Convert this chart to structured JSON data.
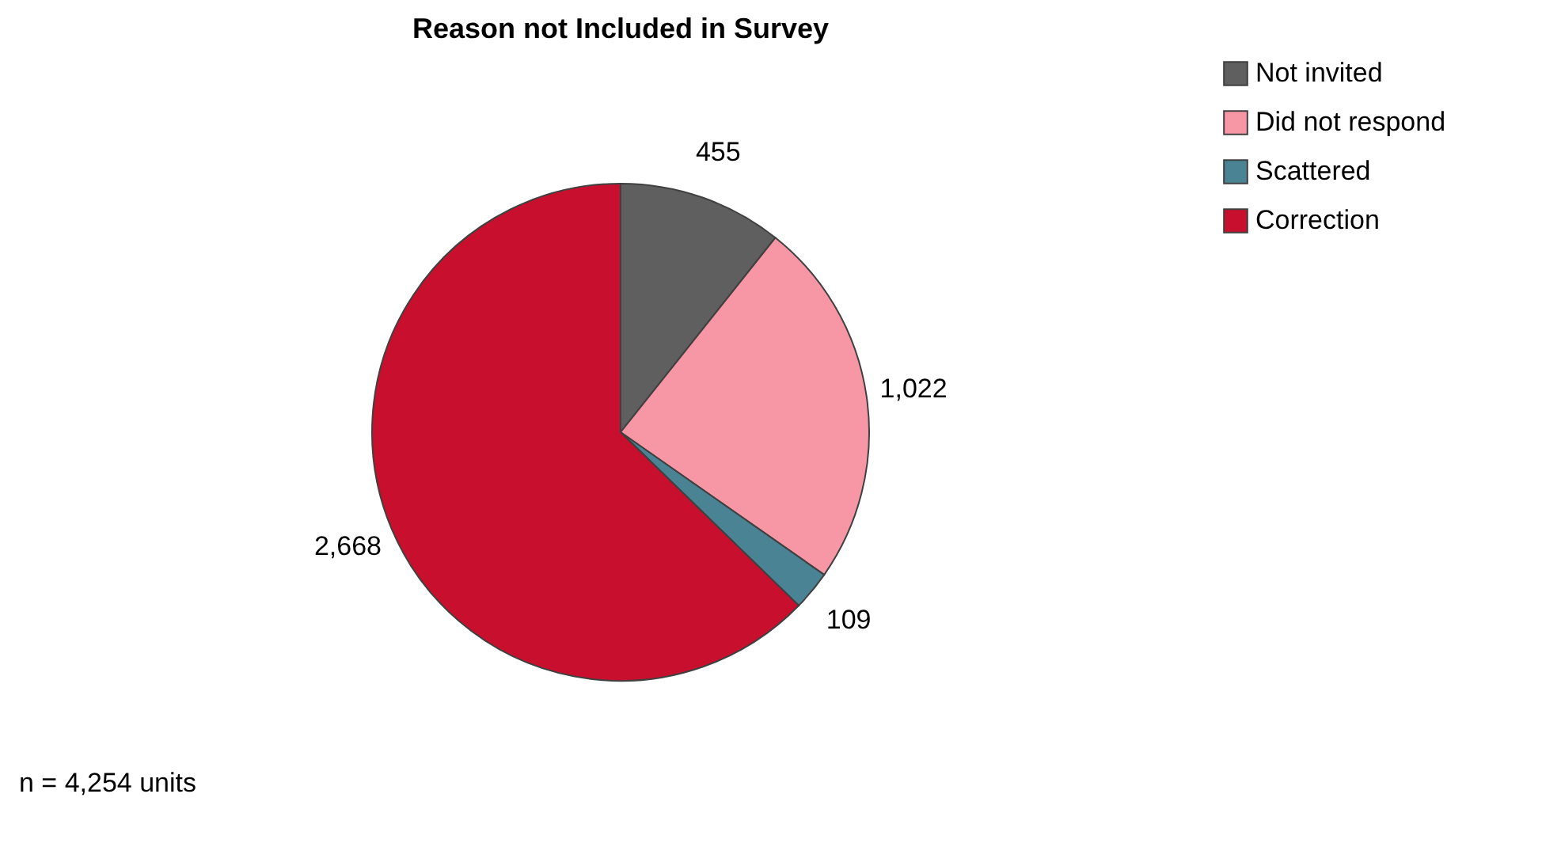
{
  "chart_data": {
    "type": "pie",
    "title": "Reason not Included in Survey",
    "categories": [
      "Not invited",
      "Did not respond",
      "Scattered",
      "Correction"
    ],
    "values": [
      455,
      1022,
      109,
      2668
    ],
    "colors": [
      "#5f5f5f",
      "#f797a6",
      "#4a8394",
      "#c8102e"
    ],
    "value_labels": [
      "455",
      "1,022",
      "109",
      "2,668"
    ],
    "legend": "right",
    "annotations": [
      "n = 4,254 units"
    ]
  }
}
